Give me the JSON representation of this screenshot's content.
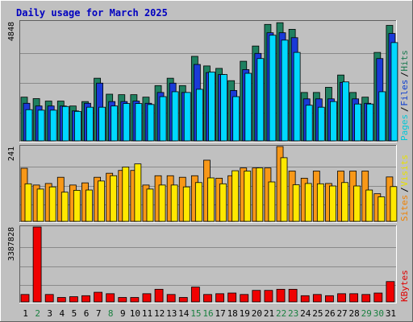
{
  "chart_data": {
    "type": "bar",
    "title": "Daily usage for March 2025",
    "categories": [
      "1",
      "2",
      "3",
      "4",
      "5",
      "6",
      "7",
      "8",
      "9",
      "10",
      "11",
      "12",
      "13",
      "14",
      "15",
      "16",
      "17",
      "18",
      "19",
      "20",
      "21",
      "22",
      "23",
      "24",
      "25",
      "26",
      "27",
      "28",
      "29",
      "30",
      "31"
    ],
    "weekend_days": [
      "2",
      "8",
      "15",
      "16",
      "22",
      "23",
      "29",
      "30"
    ],
    "panels": [
      {
        "name": "hits-panel",
        "max_label": "4848",
        "ylim": [
          0,
          4848
        ],
        "legend": [
          {
            "text": "Pages",
            "color": "#00c8d8"
          },
          {
            "text": "/",
            "color": "#000000"
          },
          {
            "text": "Files",
            "color": "#1040d0"
          },
          {
            "text": "/",
            "color": "#000000"
          },
          {
            "text": "Hits",
            "color": "#1a7a50"
          }
        ],
        "series": [
          {
            "name": "Hits",
            "color": "#1f8060",
            "values": [
              1780,
              1720,
              1620,
              1620,
              1420,
              1600,
              2550,
              1900,
              1880,
              1880,
              1780,
              2250,
              2550,
              2250,
              3440,
              3050,
              2950,
              2450,
              3240,
              3860,
              4740,
              4810,
              4540,
              1970,
              1970,
              2180,
              2680,
              1970,
              1780,
              3600,
              4700
            ]
          },
          {
            "name": "Files",
            "color": "#1a3ad8",
            "values": [
              1530,
              1420,
              1420,
              1420,
              1220,
              1530,
              2350,
              1600,
              1600,
              1620,
              1530,
              1970,
              2350,
              1970,
              3110,
              2780,
              2700,
              2050,
              2900,
              3560,
              4400,
              4400,
              4200,
              1710,
              1710,
              1710,
              2380,
              1710,
              1530,
              3350,
              4370
            ]
          },
          {
            "name": "Pages",
            "color": "#00d8ff",
            "values": [
              1270,
              1250,
              1250,
              1400,
              1200,
              1370,
              1370,
              1420,
              1520,
              1520,
              1480,
              1800,
              2000,
              1970,
              2100,
              2800,
              2700,
              1800,
              2750,
              3350,
              4300,
              4100,
              3600,
              1450,
              1370,
              1600,
              2400,
              1500,
              1500,
              2000,
              4000
            ]
          }
        ]
      },
      {
        "name": "visits-panel",
        "max_label": "241",
        "ylim": [
          0,
          241
        ],
        "legend": [
          {
            "text": "Sites",
            "color": "#f08000"
          },
          {
            "text": "/",
            "color": "#000000"
          },
          {
            "text": "Visits",
            "color": "#e8e000"
          }
        ],
        "series": [
          {
            "name": "Visits",
            "color": "#f89818",
            "values": [
              171,
              117,
              122,
              142,
              117,
              124,
              142,
              155,
              164,
              164,
              117,
              147,
              147,
              142,
              147,
              197,
              139,
              147,
              172,
              172,
              172,
              241,
              162,
              139,
              162,
              122,
              162,
              162,
              162,
              89,
              143
            ]
          },
          {
            "name": "Sites",
            "color": "#ffe800",
            "values": [
              121,
              104,
              111,
              94,
              100,
              101,
              130,
              147,
              175,
              185,
              104,
              117,
              117,
              111,
              125,
              140,
              121,
              163,
              162,
              172,
              127,
              205,
              118,
              122,
              121,
              114,
              125,
              114,
              101,
              79,
              112
            ]
          }
        ]
      },
      {
        "name": "kbytes-panel",
        "max_label": "3387828",
        "ylim": [
          0,
          3387828
        ],
        "legend": [
          {
            "text": "KBytes",
            "color": "#e00000"
          }
        ],
        "series": [
          {
            "name": "KBytes",
            "color": "#f00000",
            "values": [
              335000,
              3387828,
              335000,
              200000,
              235000,
              280000,
              435000,
              370000,
              200000,
              200000,
              370000,
              570000,
              335000,
              200000,
              670000,
              335000,
              370000,
              400000,
              335000,
              520000,
              520000,
              570000,
              570000,
              280000,
              335000,
              280000,
              370000,
              370000,
              335000,
              400000,
              920000
            ]
          }
        ]
      }
    ]
  }
}
